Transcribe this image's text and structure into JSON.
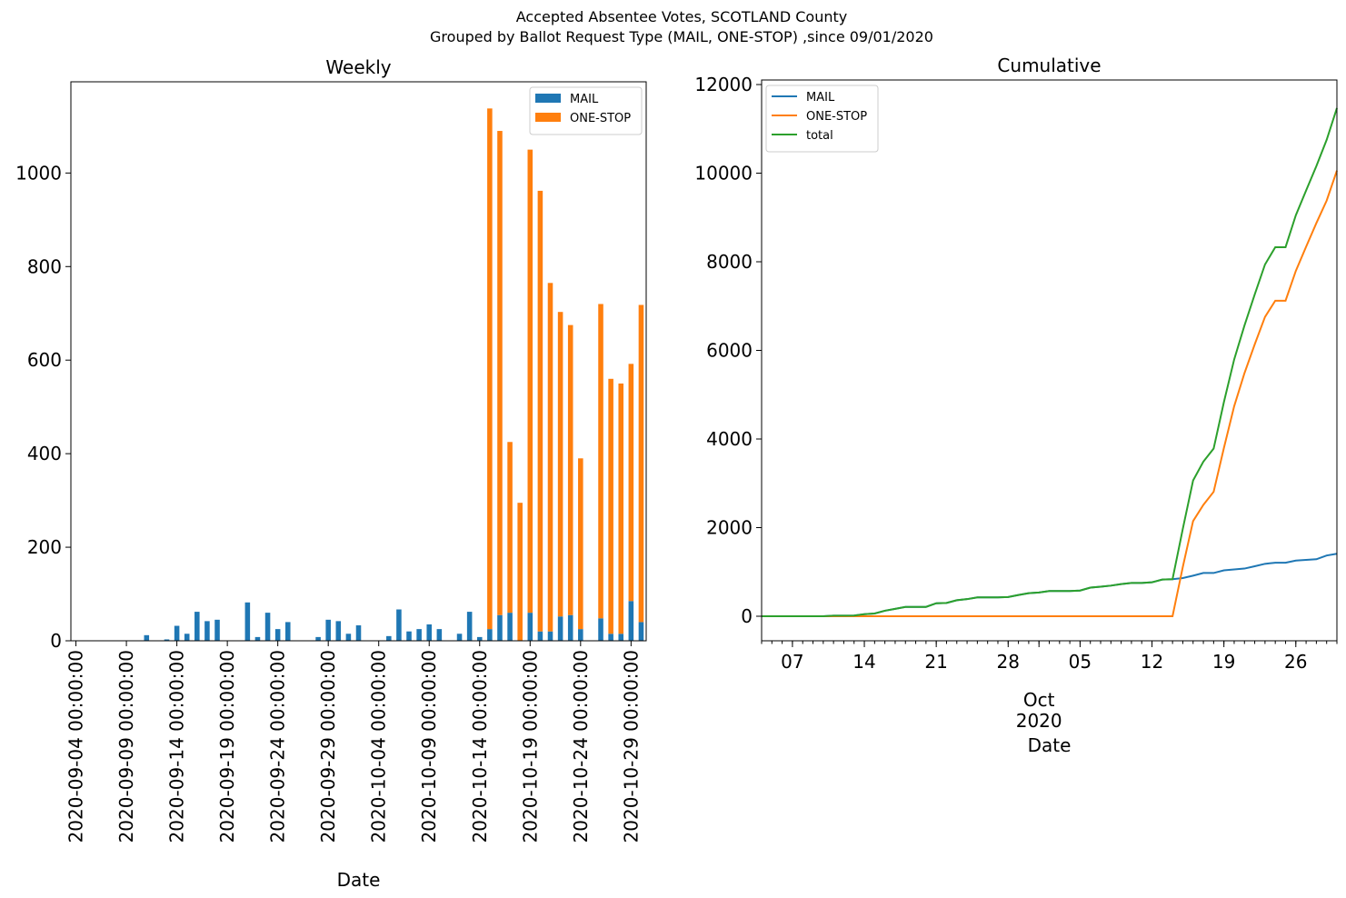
{
  "title": "Accepted Absentee Votes, SCOTLAND County",
  "subtitle": "Grouped by Ballot Request Type (MAIL, ONE-STOP) ,since 09/01/2020",
  "chart_data": [
    {
      "type": "bar",
      "stacked": true,
      "title": "Weekly",
      "xlabel": "Date",
      "categories": [
        "2020-09-04 00:00:00",
        null,
        null,
        null,
        null,
        "2020-09-09 00:00:00",
        null,
        null,
        null,
        null,
        "2020-09-14 00:00:00",
        null,
        null,
        null,
        null,
        "2020-09-19 00:00:00",
        null,
        null,
        null,
        null,
        "2020-09-24 00:00:00",
        null,
        null,
        null,
        null,
        "2020-09-29 00:00:00",
        null,
        null,
        null,
        null,
        "2020-10-04 00:00:00",
        null,
        null,
        null,
        null,
        "2020-10-09 00:00:00",
        null,
        null,
        null,
        null,
        "2020-10-14 00:00:00",
        null,
        null,
        null,
        null,
        "2020-10-19 00:00:00",
        null,
        null,
        null,
        null,
        "2020-10-24 00:00:00",
        null,
        null,
        null,
        null,
        "2020-10-29 00:00:00",
        null
      ],
      "series": [
        {
          "name": "MAIL",
          "color": "#1f77b4",
          "values": [
            0,
            0,
            0,
            0,
            0,
            0,
            0,
            12,
            0,
            3,
            32,
            15,
            62,
            42,
            45,
            0,
            0,
            82,
            8,
            60,
            25,
            40,
            0,
            0,
            8,
            45,
            42,
            15,
            33,
            0,
            0,
            10,
            67,
            20,
            25,
            35,
            25,
            0,
            15,
            62,
            8,
            25,
            55,
            60,
            0,
            60,
            20,
            20,
            52,
            55,
            25,
            0,
            48,
            15,
            15,
            85,
            40
          ]
        },
        {
          "name": "ONE-STOP",
          "color": "#ff7f0e",
          "values": [
            0,
            0,
            0,
            0,
            0,
            0,
            0,
            0,
            0,
            0,
            0,
            0,
            0,
            0,
            0,
            0,
            0,
            0,
            0,
            0,
            0,
            0,
            0,
            0,
            0,
            0,
            0,
            0,
            0,
            0,
            0,
            0,
            0,
            0,
            0,
            0,
            0,
            0,
            0,
            0,
            0,
            1113,
            1035,
            365,
            295,
            990,
            942,
            745,
            651,
            620,
            365,
            0,
            672,
            545,
            535,
            507,
            678
          ]
        }
      ],
      "ylim": [
        0,
        1195
      ],
      "yticks": [
        0,
        200,
        400,
        600,
        800,
        1000
      ],
      "legend": "upper right"
    },
    {
      "type": "line",
      "title": "Cumulative",
      "xlabel": "Date",
      "x": [
        "2020-09-04",
        "2020-09-05",
        "2020-09-06",
        "2020-09-07",
        "2020-09-08",
        "2020-09-09",
        "2020-09-10",
        "2020-09-11",
        "2020-09-12",
        "2020-09-13",
        "2020-09-14",
        "2020-09-15",
        "2020-09-16",
        "2020-09-17",
        "2020-09-18",
        "2020-09-19",
        "2020-09-20",
        "2020-09-21",
        "2020-09-22",
        "2020-09-23",
        "2020-09-24",
        "2020-09-25",
        "2020-09-26",
        "2020-09-27",
        "2020-09-28",
        "2020-09-29",
        "2020-09-30",
        "2020-10-01",
        "2020-10-02",
        "2020-10-03",
        "2020-10-04",
        "2020-10-05",
        "2020-10-06",
        "2020-10-07",
        "2020-10-08",
        "2020-10-09",
        "2020-10-10",
        "2020-10-11",
        "2020-10-12",
        "2020-10-13",
        "2020-10-14",
        "2020-10-15",
        "2020-10-16",
        "2020-10-17",
        "2020-10-18",
        "2020-10-19",
        "2020-10-20",
        "2020-10-21",
        "2020-10-22",
        "2020-10-23",
        "2020-10-24",
        "2020-10-25",
        "2020-10-26",
        "2020-10-27",
        "2020-10-28",
        "2020-10-29",
        "2020-10-30"
      ],
      "series": [
        {
          "name": "MAIL",
          "color": "#1f77b4",
          "values": [
            0,
            0,
            0,
            0,
            0,
            0,
            0,
            12,
            12,
            15,
            47,
            62,
            124,
            166,
            211,
            211,
            211,
            293,
            301,
            361,
            386,
            426,
            426,
            426,
            434,
            479,
            521,
            536,
            569,
            569,
            569,
            579,
            646,
            666,
            691,
            726,
            751,
            751,
            766,
            828,
            836,
            861,
            916,
            976,
            976,
            1036,
            1056,
            1076,
            1128,
            1183,
            1208,
            1208,
            1256,
            1271,
            1286,
            1371,
            1411
          ]
        },
        {
          "name": "ONE-STOP",
          "color": "#ff7f0e",
          "values": [
            0,
            0,
            0,
            0,
            0,
            0,
            0,
            0,
            0,
            0,
            0,
            0,
            0,
            0,
            0,
            0,
            0,
            0,
            0,
            0,
            0,
            0,
            0,
            0,
            0,
            0,
            0,
            0,
            0,
            0,
            0,
            0,
            0,
            0,
            0,
            0,
            0,
            0,
            0,
            0,
            0,
            1113,
            2148,
            2513,
            2808,
            3798,
            4740,
            5485,
            6136,
            6756,
            7121,
            7121,
            7793,
            8338,
            8873,
            9380,
            10058
          ]
        },
        {
          "name": "total",
          "color": "#2ca02c",
          "values": [
            0,
            0,
            0,
            0,
            0,
            0,
            0,
            12,
            12,
            15,
            47,
            62,
            124,
            166,
            211,
            211,
            211,
            293,
            301,
            361,
            386,
            426,
            426,
            426,
            434,
            479,
            521,
            536,
            569,
            569,
            569,
            579,
            646,
            666,
            691,
            726,
            751,
            751,
            766,
            828,
            836,
            1974,
            3064,
            3489,
            3784,
            4834,
            5796,
            6561,
            7264,
            7939,
            8329,
            8329,
            9049,
            9609,
            10159,
            10751,
            11469
          ]
        }
      ],
      "xlim": [
        "2020-09-04",
        "2020-10-30"
      ],
      "xticks": [
        {
          "value": "2020-09-07",
          "label": "07"
        },
        {
          "value": "2020-09-14",
          "label": "14"
        },
        {
          "value": "2020-09-21",
          "label": "21"
        },
        {
          "value": "2020-09-28",
          "label": "28"
        },
        {
          "value": "2020-10-01",
          "label": "Oct\n2020"
        },
        {
          "value": "2020-10-05",
          "label": "05"
        },
        {
          "value": "2020-10-12",
          "label": "12"
        },
        {
          "value": "2020-10-19",
          "label": "19"
        },
        {
          "value": "2020-10-26",
          "label": "26"
        }
      ],
      "ylim": [
        -554,
        12103
      ],
      "yticks": [
        0,
        2000,
        4000,
        6000,
        8000,
        10000,
        12000
      ],
      "legend": "upper left"
    }
  ]
}
